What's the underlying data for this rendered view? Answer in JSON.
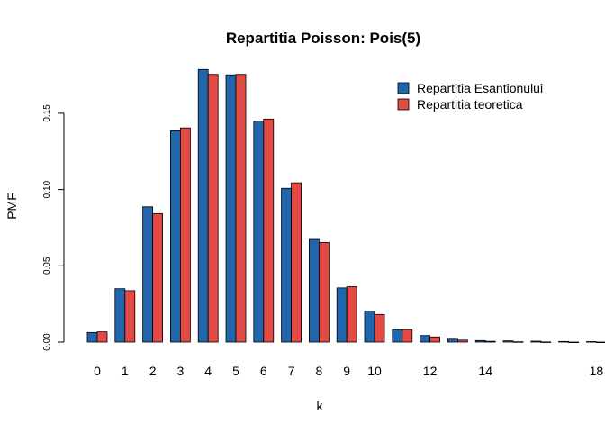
{
  "chart_data": {
    "type": "bar",
    "title": "Repartitia Poisson: Pois(5)",
    "xlabel": "k",
    "ylabel": "PMF",
    "categories": [
      "0",
      "1",
      "2",
      "3",
      "4",
      "5",
      "6",
      "7",
      "8",
      "9",
      "10",
      "11",
      "12",
      "13",
      "14",
      "15",
      "16",
      "17",
      "18"
    ],
    "shown_x_ticks": [
      "0",
      "1",
      "2",
      "3",
      "4",
      "5",
      "6",
      "7",
      "8",
      "9",
      "10",
      "12",
      "14",
      "18"
    ],
    "y_ticks": [
      "0.00",
      "0.05",
      "0.10",
      "0.15"
    ],
    "ylim": [
      0,
      0.18
    ],
    "grid": false,
    "legend_position": "top-right",
    "colors": {
      "Repartitia Esantionului": "#2166ac",
      "Repartitia teoretica": "#e34a43"
    },
    "series": [
      {
        "name": "Repartitia Esantionului",
        "values": [
          0.0063,
          0.035,
          0.0887,
          0.1385,
          0.1787,
          0.1752,
          0.1448,
          0.1008,
          0.0673,
          0.0355,
          0.0203,
          0.0082,
          0.0043,
          0.0019,
          0.001,
          0.0008,
          0.0006,
          0.0004,
          0.0003
        ]
      },
      {
        "name": "Repartitia teoretica",
        "values": [
          0.0067,
          0.0337,
          0.0842,
          0.1404,
          0.1755,
          0.1755,
          0.1462,
          0.1044,
          0.0653,
          0.0363,
          0.0181,
          0.0082,
          0.0034,
          0.0013,
          0.0005,
          0.0002,
          0.0001,
          0.0,
          0.0
        ]
      }
    ]
  }
}
